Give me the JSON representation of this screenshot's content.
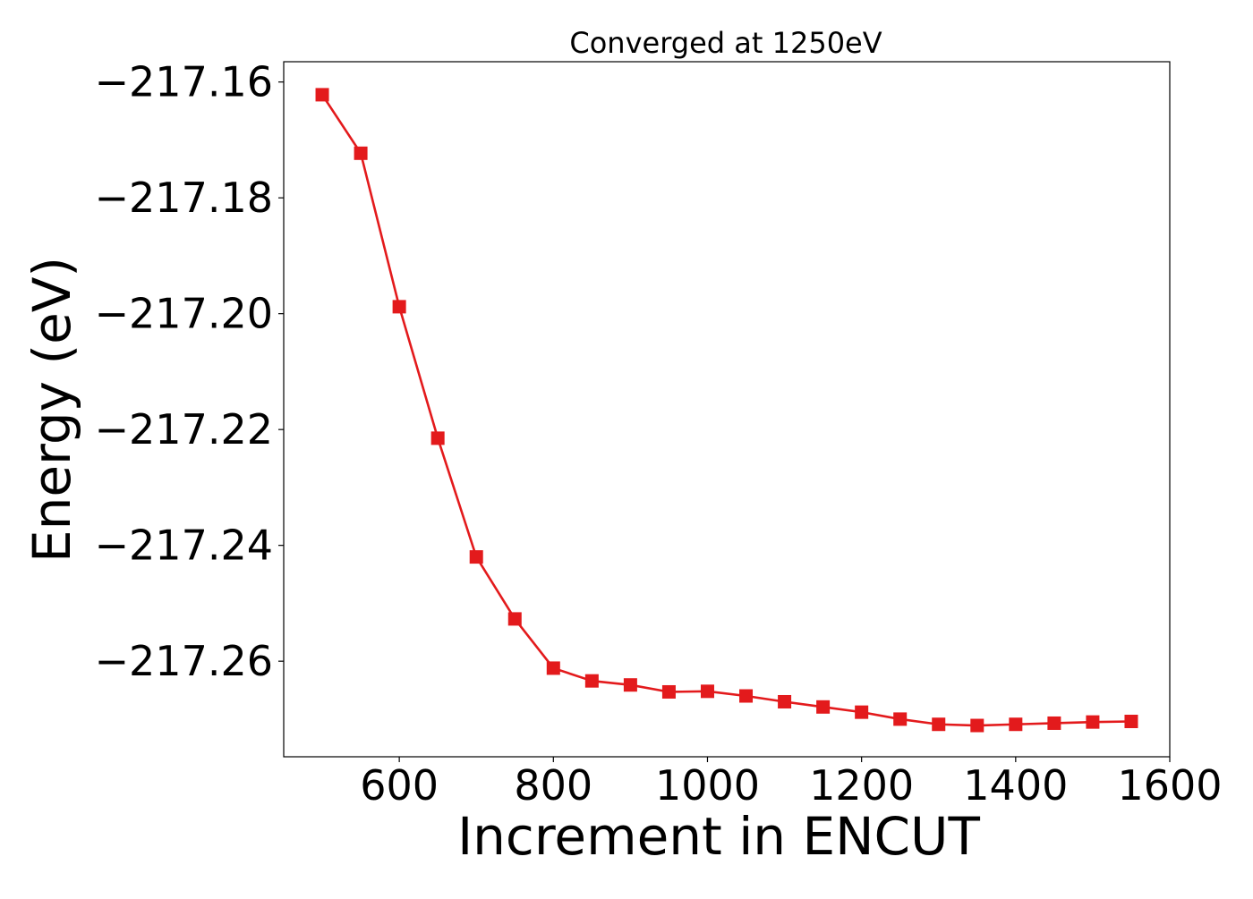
{
  "chart_data": {
    "type": "line",
    "title": "Converged at 1250eV",
    "xlabel": "Increment in ENCUT",
    "ylabel": "Energy (eV)",
    "xlim": [
      450,
      1600
    ],
    "ylim": [
      -217.2765,
      -217.1565
    ],
    "xticks": [
      600,
      800,
      1000,
      1200,
      1400,
      1600
    ],
    "xtick_labels": [
      "600",
      "800",
      "1000",
      "1200",
      "1400",
      "1600"
    ],
    "yticks": [
      -217.16,
      -217.18,
      -217.2,
      -217.22,
      -217.24,
      -217.26
    ],
    "ytick_labels": [
      "−217.16",
      "−217.18",
      "−217.20",
      "−217.22",
      "−217.24",
      "−217.26"
    ],
    "grid": false,
    "series": [
      {
        "color": "#e31a1c",
        "marker": "square",
        "x": [
          500,
          550,
          600,
          650,
          700,
          750,
          800,
          850,
          900,
          950,
          1000,
          1050,
          1100,
          1150,
          1200,
          1250,
          1300,
          1350,
          1400,
          1450,
          1500,
          1550
        ],
        "y": [
          -217.1622,
          -217.1723,
          -217.1988,
          -217.2215,
          -217.242,
          -217.2527,
          -217.2612,
          -217.2634,
          -217.2641,
          -217.2653,
          -217.2652,
          -217.266,
          -217.267,
          -217.2679,
          -217.2688,
          -217.27,
          -217.2709,
          -217.2711,
          -217.2709,
          -217.2707,
          -217.2705,
          -217.2704
        ]
      }
    ]
  }
}
